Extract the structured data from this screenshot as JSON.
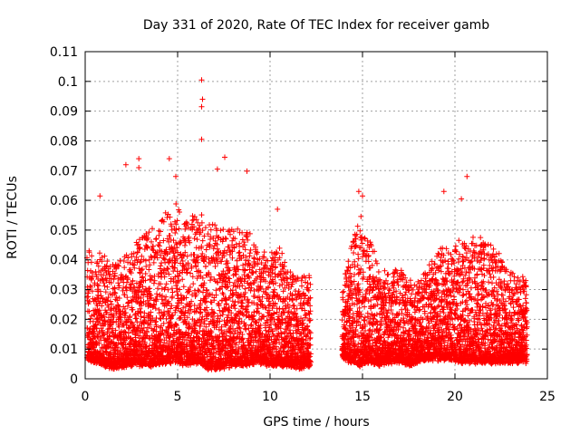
{
  "chart_data": {
    "type": "scatter",
    "title": "Day 331 of 2020, Rate Of TEC Index for receiver gamb",
    "xlabel": "GPS time / hours",
    "ylabel": "ROTI / TECUs",
    "xlim": [
      0,
      25
    ],
    "ylim": [
      0,
      0.11
    ],
    "grid": true,
    "xticks": [
      0,
      5,
      10,
      15,
      20,
      25
    ],
    "xtick_labels": [
      "0",
      "5",
      "10",
      "15",
      "20",
      "25"
    ],
    "yticks": [
      0,
      0.01,
      0.02,
      0.03,
      0.04,
      0.05,
      0.06,
      0.07,
      0.08,
      0.09,
      0.1,
      0.11
    ],
    "ytick_labels": [
      "0",
      "0.01",
      "0.02",
      "0.03",
      "0.04",
      "0.05",
      "0.06",
      "0.07",
      "0.08",
      "0.09",
      "0.1",
      "0.11"
    ],
    "marker": "+",
    "color": "#ff0000",
    "data_gap_hours": [
      12.3,
      13.8
    ],
    "series": [
      {
        "name": "ROTI",
        "notable_points": [
          {
            "x": 6.3,
            "y": 0.1005
          },
          {
            "x": 6.35,
            "y": 0.094
          },
          {
            "x": 6.3,
            "y": 0.0915
          },
          {
            "x": 6.3,
            "y": 0.0805
          },
          {
            "x": 7.55,
            "y": 0.0745
          },
          {
            "x": 4.55,
            "y": 0.074
          },
          {
            "x": 2.9,
            "y": 0.074
          },
          {
            "x": 2.2,
            "y": 0.072
          },
          {
            "x": 2.9,
            "y": 0.071
          },
          {
            "x": 7.15,
            "y": 0.0705
          },
          {
            "x": 8.75,
            "y": 0.0698
          },
          {
            "x": 20.65,
            "y": 0.068
          },
          {
            "x": 4.9,
            "y": 0.068
          },
          {
            "x": 14.8,
            "y": 0.063
          },
          {
            "x": 19.4,
            "y": 0.063
          },
          {
            "x": 0.8,
            "y": 0.0615
          },
          {
            "x": 15.0,
            "y": 0.0615
          },
          {
            "x": 10.4,
            "y": 0.057
          },
          {
            "x": 20.35,
            "y": 0.0605
          }
        ],
        "envelope": [
          {
            "x": 0.1,
            "low": 0.007,
            "high": 0.044
          },
          {
            "x": 0.6,
            "low": 0.006,
            "high": 0.043
          },
          {
            "x": 1.5,
            "low": 0.004,
            "high": 0.039
          },
          {
            "x": 2.5,
            "low": 0.005,
            "high": 0.043
          },
          {
            "x": 3.0,
            "low": 0.005,
            "high": 0.049
          },
          {
            "x": 3.8,
            "low": 0.005,
            "high": 0.051
          },
          {
            "x": 4.5,
            "low": 0.006,
            "high": 0.057
          },
          {
            "x": 5.0,
            "low": 0.006,
            "high": 0.06
          },
          {
            "x": 5.5,
            "low": 0.005,
            "high": 0.053
          },
          {
            "x": 6.2,
            "low": 0.006,
            "high": 0.058
          },
          {
            "x": 6.6,
            "low": 0.004,
            "high": 0.055
          },
          {
            "x": 7.3,
            "low": 0.004,
            "high": 0.05
          },
          {
            "x": 8.0,
            "low": 0.005,
            "high": 0.052
          },
          {
            "x": 8.7,
            "low": 0.005,
            "high": 0.05
          },
          {
            "x": 9.3,
            "low": 0.006,
            "high": 0.046
          },
          {
            "x": 10.0,
            "low": 0.005,
            "high": 0.041
          },
          {
            "x": 10.5,
            "low": 0.005,
            "high": 0.044
          },
          {
            "x": 11.0,
            "low": 0.005,
            "high": 0.037
          },
          {
            "x": 11.6,
            "low": 0.004,
            "high": 0.034
          },
          {
            "x": 12.2,
            "low": 0.005,
            "high": 0.036
          },
          {
            "x": 13.9,
            "low": 0.007,
            "high": 0.03
          },
          {
            "x": 14.4,
            "low": 0.006,
            "high": 0.046
          },
          {
            "x": 14.9,
            "low": 0.005,
            "high": 0.055
          },
          {
            "x": 15.4,
            "low": 0.006,
            "high": 0.047
          },
          {
            "x": 16.0,
            "low": 0.005,
            "high": 0.036
          },
          {
            "x": 16.5,
            "low": 0.006,
            "high": 0.037
          },
          {
            "x": 17.0,
            "low": 0.006,
            "high": 0.037
          },
          {
            "x": 17.6,
            "low": 0.005,
            "high": 0.034
          },
          {
            "x": 18.2,
            "low": 0.007,
            "high": 0.034
          },
          {
            "x": 18.8,
            "low": 0.007,
            "high": 0.04
          },
          {
            "x": 19.3,
            "low": 0.007,
            "high": 0.046
          },
          {
            "x": 19.8,
            "low": 0.007,
            "high": 0.043
          },
          {
            "x": 20.3,
            "low": 0.006,
            "high": 0.047
          },
          {
            "x": 20.8,
            "low": 0.006,
            "high": 0.049
          },
          {
            "x": 21.3,
            "low": 0.006,
            "high": 0.047
          },
          {
            "x": 21.8,
            "low": 0.006,
            "high": 0.045
          },
          {
            "x": 22.3,
            "low": 0.006,
            "high": 0.044
          },
          {
            "x": 22.8,
            "low": 0.006,
            "high": 0.037
          },
          {
            "x": 23.3,
            "low": 0.006,
            "high": 0.035
          },
          {
            "x": 23.9,
            "low": 0.006,
            "high": 0.034
          }
        ]
      }
    ]
  }
}
